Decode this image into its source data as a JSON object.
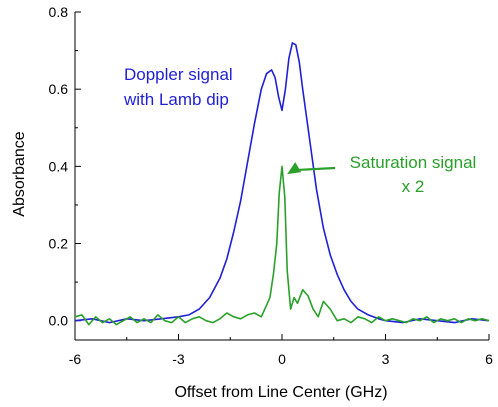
{
  "chart_data": {
    "type": "line",
    "xlabel": "Offset from Line Center (GHz)",
    "ylabel": "Absorbance",
    "xlim": [
      -6,
      6
    ],
    "ylim": [
      -0.05,
      0.8
    ],
    "x_ticks": [
      -6,
      -3,
      0,
      3,
      6
    ],
    "x_tick_labels": [
      "-6",
      "-3",
      "0",
      "3",
      "6"
    ],
    "y_ticks": [
      0.0,
      0.2,
      0.4,
      0.6,
      0.8
    ],
    "y_tick_labels": [
      "0.0",
      "0.2",
      "0.4",
      "0.6",
      "0.8"
    ],
    "grid": false,
    "series": [
      {
        "color": "#1f1fd6",
        "x": [
          -6.0,
          -5.5,
          -5.0,
          -4.5,
          -4.0,
          -3.5,
          -3.0,
          -2.7,
          -2.4,
          -2.1,
          -1.8,
          -1.6,
          -1.4,
          -1.2,
          -1.0,
          -0.8,
          -0.6,
          -0.45,
          -0.3,
          -0.2,
          -0.1,
          0.0,
          0.1,
          0.2,
          0.3,
          0.4,
          0.5,
          0.6,
          0.8,
          1.0,
          1.2,
          1.4,
          1.6,
          1.8,
          2.0,
          2.2,
          2.5,
          2.8,
          3.0,
          3.5,
          4.0,
          4.5,
          5.0,
          5.5,
          6.0
        ],
        "y": [
          0.0,
          0.005,
          -0.005,
          0.005,
          0.0,
          0.005,
          0.01,
          0.015,
          0.03,
          0.06,
          0.11,
          0.16,
          0.23,
          0.31,
          0.41,
          0.51,
          0.6,
          0.64,
          0.65,
          0.63,
          0.58,
          0.545,
          0.6,
          0.68,
          0.72,
          0.715,
          0.67,
          0.6,
          0.47,
          0.34,
          0.24,
          0.17,
          0.12,
          0.08,
          0.05,
          0.03,
          0.015,
          0.005,
          0.0,
          -0.005,
          0.005,
          0.0,
          -0.005,
          0.005,
          0.0
        ],
        "annotation": [
          "Doppler signal",
          "with Lamb dip"
        ]
      },
      {
        "color": "#2aa02a",
        "x": [
          -6.0,
          -5.8,
          -5.6,
          -5.4,
          -5.2,
          -5.0,
          -4.8,
          -4.6,
          -4.4,
          -4.2,
          -4.0,
          -3.8,
          -3.6,
          -3.4,
          -3.2,
          -3.0,
          -2.8,
          -2.6,
          -2.4,
          -2.2,
          -2.0,
          -1.8,
          -1.6,
          -1.4,
          -1.2,
          -1.0,
          -0.8,
          -0.6,
          -0.45,
          -0.35,
          -0.25,
          -0.15,
          -0.08,
          0.0,
          0.08,
          0.15,
          0.25,
          0.35,
          0.45,
          0.6,
          0.75,
          0.9,
          1.05,
          1.2,
          1.4,
          1.6,
          1.8,
          2.0,
          2.2,
          2.4,
          2.6,
          2.8,
          3.0,
          3.2,
          3.4,
          3.6,
          3.8,
          4.0,
          4.2,
          4.4,
          4.6,
          4.8,
          5.0,
          5.2,
          5.4,
          5.6,
          5.8,
          6.0
        ],
        "y": [
          0.01,
          0.015,
          -0.01,
          0.01,
          -0.005,
          0.005,
          -0.01,
          0.0,
          0.01,
          -0.005,
          0.005,
          -0.005,
          0.015,
          0.0,
          -0.005,
          0.01,
          -0.005,
          0.005,
          0.01,
          0.0,
          -0.005,
          0.005,
          0.02,
          0.01,
          0.005,
          0.015,
          0.02,
          0.01,
          0.04,
          0.06,
          0.12,
          0.2,
          0.33,
          0.4,
          0.32,
          0.13,
          0.03,
          0.06,
          0.045,
          0.08,
          0.065,
          0.03,
          0.01,
          0.05,
          0.03,
          0.0,
          0.005,
          -0.005,
          0.01,
          0.005,
          -0.005,
          0.01,
          0.0,
          0.005,
          0.0,
          -0.005,
          0.005,
          0.0,
          0.01,
          -0.005,
          0.005,
          0.0,
          0.005,
          -0.005,
          0.005,
          0.0,
          0.005,
          0.0
        ],
        "annotation": [
          "Saturation signal",
          "x 2"
        ]
      }
    ]
  }
}
